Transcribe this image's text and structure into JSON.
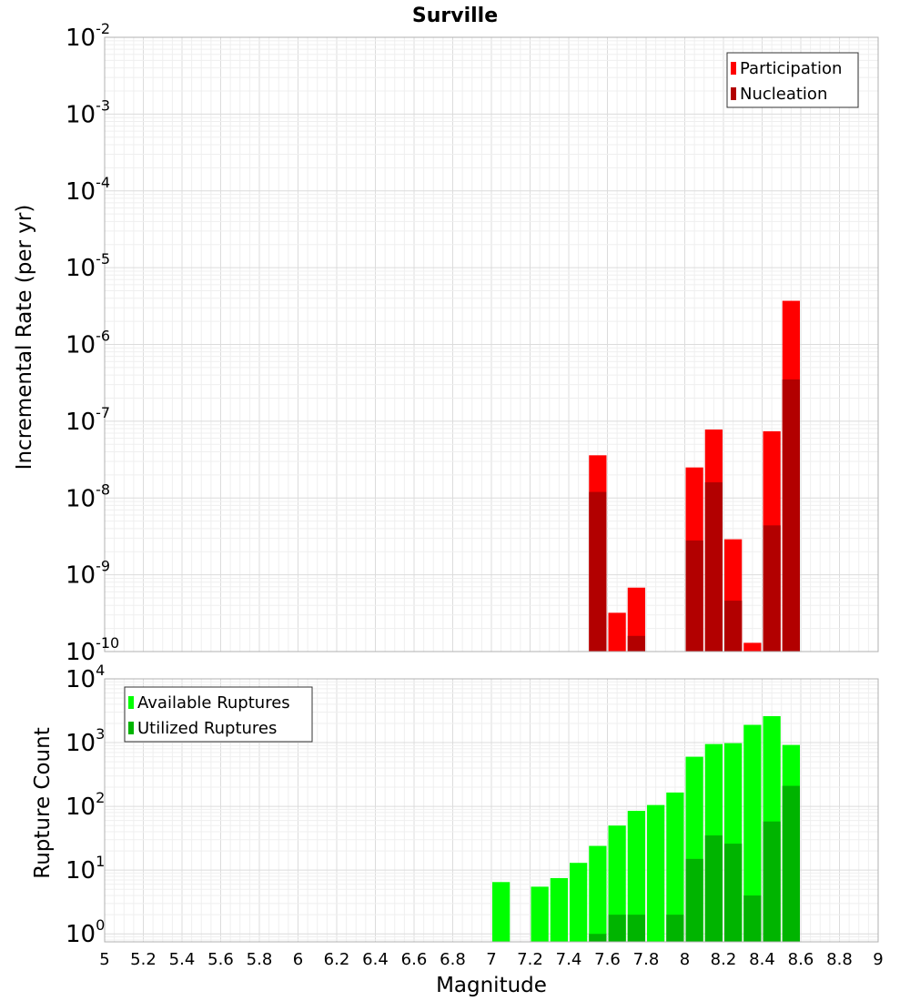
{
  "chart_data": [
    {
      "type": "bar",
      "title": "Surville",
      "ylabel": "Incremental Rate (per yr)",
      "xlabel": "",
      "y_scale": "log",
      "ylim": [
        1e-10,
        0.01
      ],
      "xlim": [
        5,
        9
      ],
      "bar_width": 0.1,
      "legend_position": "top-right",
      "y_ticks": [
        {
          "base": "10",
          "exp": "-10",
          "value": 1e-10
        },
        {
          "base": "10",
          "exp": "-9",
          "value": 1e-09
        },
        {
          "base": "10",
          "exp": "-8",
          "value": 1e-08
        },
        {
          "base": "10",
          "exp": "-7",
          "value": 1e-07
        },
        {
          "base": "10",
          "exp": "-6",
          "value": 1e-06
        },
        {
          "base": "10",
          "exp": "-5",
          "value": 1e-05
        },
        {
          "base": "10",
          "exp": "-4",
          "value": 0.0001
        },
        {
          "base": "10",
          "exp": "-3",
          "value": 0.001
        },
        {
          "base": "10",
          "exp": "-2",
          "value": 0.01
        }
      ],
      "series": [
        {
          "name": "Participation",
          "color": "#ff0000",
          "x": [
            7.55,
            7.65,
            7.75,
            8.05,
            8.15,
            8.25,
            8.35,
            8.45,
            8.55
          ],
          "values": [
            3.6e-08,
            3.2e-10,
            6.8e-10,
            2.5e-08,
            7.8e-08,
            2.9e-09,
            1.3e-10,
            7.4e-08,
            3.7e-06
          ]
        },
        {
          "name": "Nucleation",
          "color": "#b20000",
          "x": [
            7.55,
            7.75,
            8.05,
            8.15,
            8.25,
            8.45,
            8.55
          ],
          "values": [
            1.2e-08,
            1.6e-10,
            2.8e-09,
            1.6e-08,
            4.6e-10,
            4.4e-09,
            3.5e-07
          ]
        }
      ]
    },
    {
      "type": "bar",
      "title": "",
      "ylabel": "Rupture Count",
      "xlabel": "Magnitude",
      "y_scale": "log",
      "ylim": [
        0.75,
        10000
      ],
      "xlim": [
        5,
        9
      ],
      "bar_width": 0.1,
      "legend_position": "top-left",
      "x_ticks": [
        "5",
        "5.2",
        "5.4",
        "5.6",
        "5.8",
        "6",
        "6.2",
        "6.4",
        "6.6",
        "6.8",
        "7",
        "7.2",
        "7.4",
        "7.6",
        "7.8",
        "8",
        "8.2",
        "8.4",
        "8.6",
        "8.8",
        "9"
      ],
      "y_ticks": [
        {
          "base": "10",
          "exp": "0",
          "value": 1
        },
        {
          "base": "10",
          "exp": "1",
          "value": 10
        },
        {
          "base": "10",
          "exp": "2",
          "value": 100
        },
        {
          "base": "10",
          "exp": "3",
          "value": 1000
        },
        {
          "base": "10",
          "exp": "4",
          "value": 10000
        }
      ],
      "series": [
        {
          "name": "Available Ruptures",
          "color": "#00ff00",
          "x": [
            7.05,
            7.25,
            7.35,
            7.45,
            7.55,
            7.65,
            7.75,
            7.85,
            7.95,
            8.05,
            8.15,
            8.25,
            8.35,
            8.45,
            8.55
          ],
          "values": [
            6.5,
            5.5,
            7.5,
            13,
            24,
            50,
            85,
            105,
            165,
            600,
            950,
            980,
            1900,
            2600,
            920
          ]
        },
        {
          "name": "Utilized Ruptures",
          "color": "#00b400",
          "x": [
            7.55,
            7.65,
            7.75,
            7.95,
            8.05,
            8.15,
            8.25,
            8.35,
            8.45,
            8.55
          ],
          "values": [
            1,
            2,
            2,
            2,
            15,
            35,
            26,
            4,
            58,
            210
          ]
        }
      ]
    }
  ]
}
